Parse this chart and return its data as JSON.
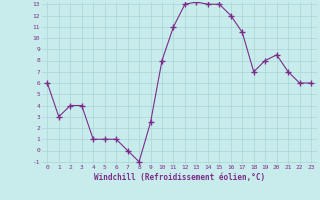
{
  "x": [
    0,
    1,
    2,
    3,
    4,
    5,
    6,
    7,
    8,
    9,
    10,
    11,
    12,
    13,
    14,
    15,
    16,
    17,
    18,
    19,
    20,
    21,
    22,
    23
  ],
  "y": [
    6,
    3,
    4,
    4,
    1,
    1,
    1,
    0,
    -1,
    2.5,
    8,
    11,
    13,
    13.2,
    13,
    13,
    12,
    10.5,
    7,
    8,
    8.5,
    7,
    6,
    6
  ],
  "line_color": "#7b2d8b",
  "marker": "+",
  "marker_size": 4,
  "bg_color": "#c8ecec",
  "grid_color": "#aed8d8",
  "xlabel": "Windchill (Refroidissement éolien,°C)",
  "xlabel_color": "#7b2d8b",
  "tick_color": "#7b2d8b",
  "ylim": [
    -1,
    13
  ],
  "xlim": [
    -0.5,
    23.5
  ],
  "yticks": [
    -1,
    0,
    1,
    2,
    3,
    4,
    5,
    6,
    7,
    8,
    9,
    10,
    11,
    12,
    13
  ],
  "xticks": [
    0,
    1,
    2,
    3,
    4,
    5,
    6,
    7,
    8,
    9,
    10,
    11,
    12,
    13,
    14,
    15,
    16,
    17,
    18,
    19,
    20,
    21,
    22,
    23
  ],
  "tick_fontsize": 4.5,
  "xlabel_fontsize": 5.5
}
